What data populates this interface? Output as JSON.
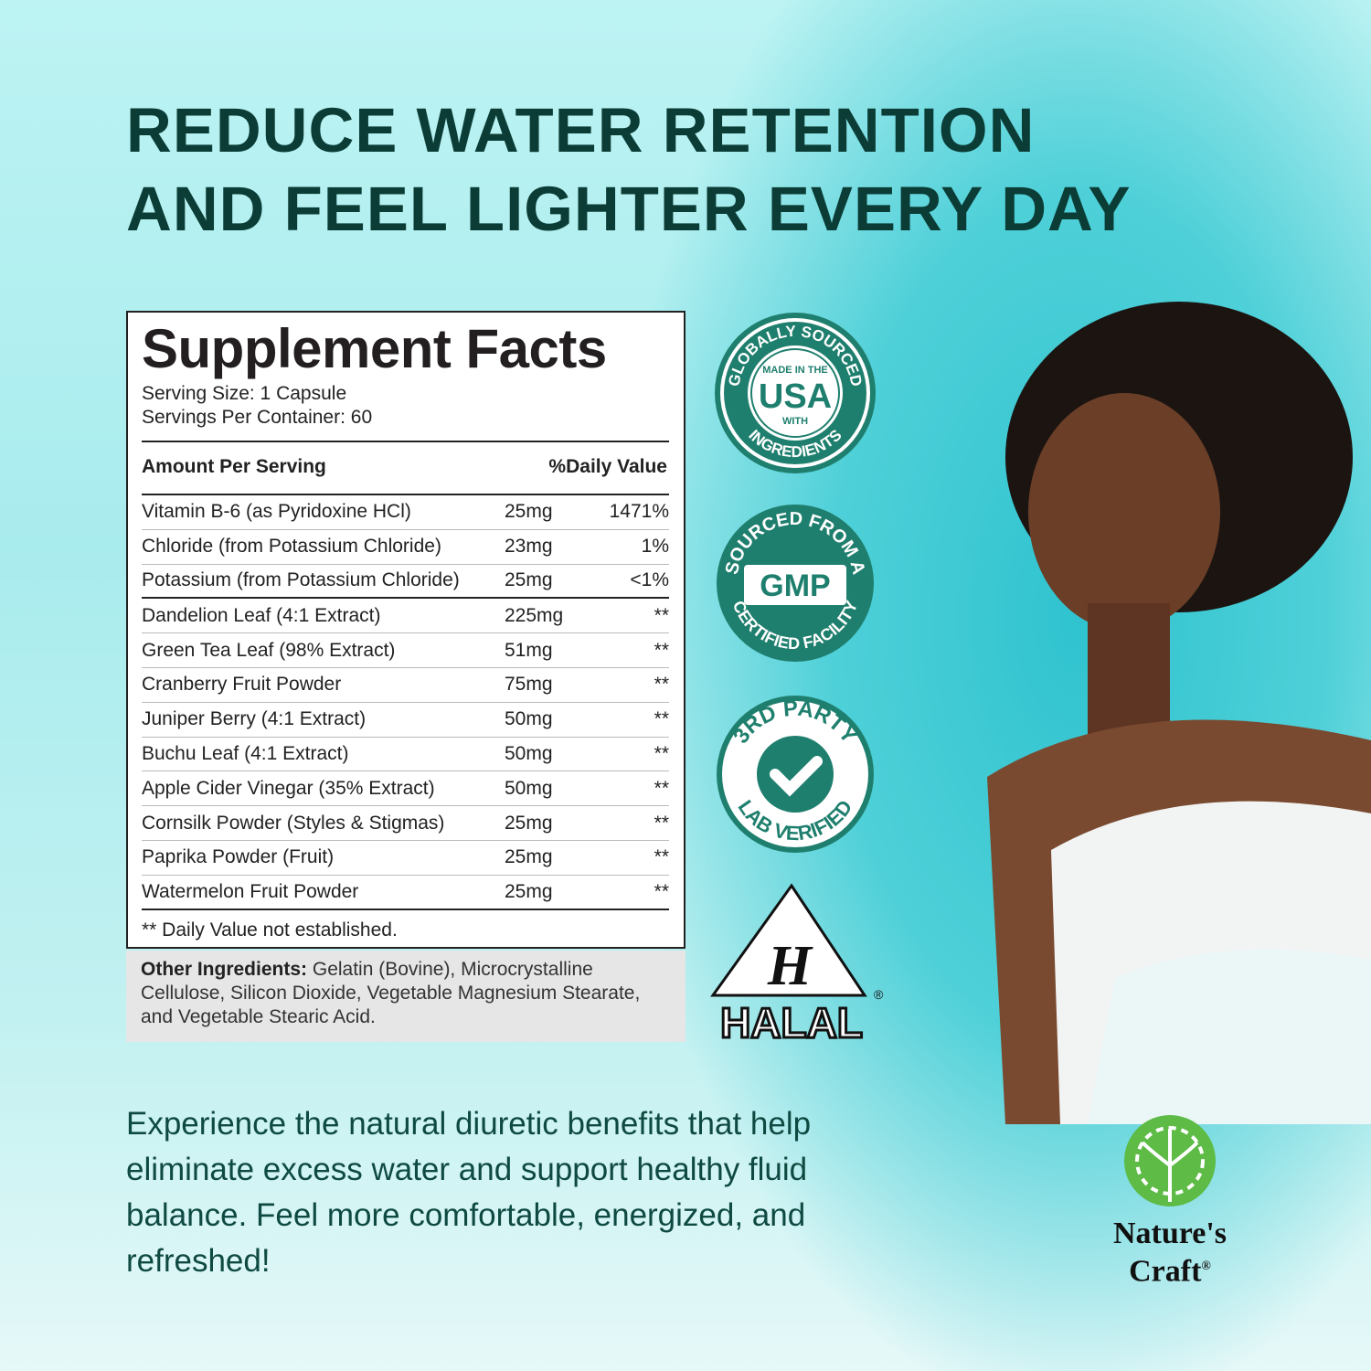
{
  "headline": [
    "REDUCE WATER RETENTION",
    "AND FEEL LIGHTER EVERY DAY"
  ],
  "facts": {
    "title": "Supplement Facts",
    "serving_size": "Serving Size: 1 Capsule",
    "servings_per_container": "Servings Per Container: 60",
    "col_amount": "Amount Per Serving",
    "col_dv": "%Daily Value",
    "rows": [
      {
        "name": "Vitamin B-6 (as Pyridoxine HCl)",
        "amount": "25mg",
        "dv": "1471%"
      },
      {
        "name": "Chloride (from Potassium Chloride)",
        "amount": "23mg",
        "dv": "1%"
      },
      {
        "name": "Potassium (from Potassium Chloride)",
        "amount": "25mg",
        "dv": "<1%"
      },
      {
        "name": "Dandelion Leaf (4:1 Extract)",
        "amount": "225mg",
        "dv": "**"
      },
      {
        "name": "Green Tea Leaf (98% Extract)",
        "amount": "51mg",
        "dv": "**"
      },
      {
        "name": "Cranberry Fruit Powder",
        "amount": "75mg",
        "dv": "**"
      },
      {
        "name": "Juniper Berry (4:1 Extract)",
        "amount": "50mg",
        "dv": "**"
      },
      {
        "name": "Buchu Leaf (4:1 Extract)",
        "amount": "50mg",
        "dv": "**"
      },
      {
        "name": "Apple Cider Vinegar (35% Extract)",
        "amount": "50mg",
        "dv": "**"
      },
      {
        "name": "Cornsilk Powder (Styles & Stigmas)",
        "amount": "25mg",
        "dv": "**"
      },
      {
        "name": "Paprika Powder (Fruit)",
        "amount": "25mg",
        "dv": "**"
      },
      {
        "name": "Watermelon Fruit Powder",
        "amount": "25mg",
        "dv": "**"
      }
    ],
    "footnote": "** Daily Value not established."
  },
  "other": {
    "label": "Other Ingredients:",
    "text": " Gelatin (Bovine), Microcrystalline Cellulose, Silicon Dioxide, Vegetable Magnesium Stearate, and Vegetable Stearic Acid."
  },
  "badges": {
    "usa": {
      "top": "GLOBALLY SOURCED",
      "bottom": "INGREDIENTS",
      "l1": "MADE IN THE",
      "l2": "USA",
      "l3": "WITH"
    },
    "gmp": {
      "top": "SOURCED FROM A",
      "bottom": "CERTIFIED FACILITY",
      "center": "GMP"
    },
    "lab": {
      "top": "3RD PARTY",
      "bottom": "LAB VERIFIED"
    },
    "halal": {
      "letter": "H",
      "label": "HALAL"
    },
    "color": "#1f7f6e"
  },
  "body_text": "Experience the natural diuretic benefits that help eliminate excess water and support healthy fluid balance. Feel more comfortable, energized, and refreshed!",
  "logo": {
    "line1": "Nature's",
    "line2": "Craft",
    "mark": "®"
  }
}
